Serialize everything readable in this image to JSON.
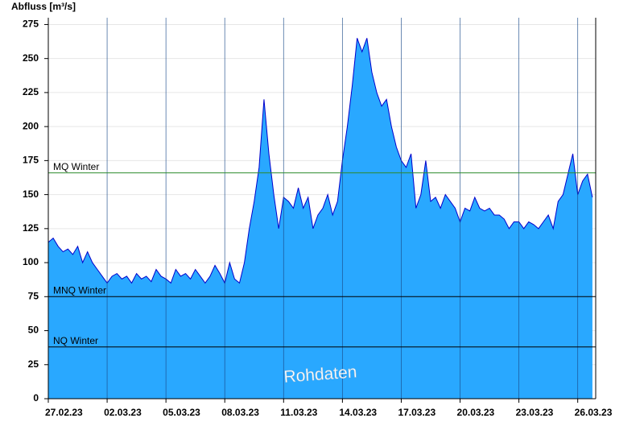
{
  "chart_data": {
    "type": "area",
    "y_label": "Abfluss [m³/s]",
    "annotation": "Rohdaten",
    "x": [
      "2023-02-27T00:00Z",
      "2023-02-27T06:00Z",
      "2023-02-27T12:00Z",
      "2023-02-27T18:00Z",
      "2023-02-28T00:00Z",
      "2023-02-28T06:00Z",
      "2023-02-28T12:00Z",
      "2023-02-28T18:00Z",
      "2023-03-01T00:00Z",
      "2023-03-01T06:00Z",
      "2023-03-01T12:00Z",
      "2023-03-01T18:00Z",
      "2023-03-02T00:00Z",
      "2023-03-02T06:00Z",
      "2023-03-02T12:00Z",
      "2023-03-02T18:00Z",
      "2023-03-03T00:00Z",
      "2023-03-03T06:00Z",
      "2023-03-03T12:00Z",
      "2023-03-03T18:00Z",
      "2023-03-04T00:00Z",
      "2023-03-04T06:00Z",
      "2023-03-04T12:00Z",
      "2023-03-04T18:00Z",
      "2023-03-05T00:00Z",
      "2023-03-05T06:00Z",
      "2023-03-05T12:00Z",
      "2023-03-05T18:00Z",
      "2023-03-06T00:00Z",
      "2023-03-06T06:00Z",
      "2023-03-06T12:00Z",
      "2023-03-06T18:00Z",
      "2023-03-07T00:00Z",
      "2023-03-07T06:00Z",
      "2023-03-07T12:00Z",
      "2023-03-07T18:00Z",
      "2023-03-08T00:00Z",
      "2023-03-08T06:00Z",
      "2023-03-08T12:00Z",
      "2023-03-08T18:00Z",
      "2023-03-09T00:00Z",
      "2023-03-09T06:00Z",
      "2023-03-09T12:00Z",
      "2023-03-09T18:00Z",
      "2023-03-10T00:00Z",
      "2023-03-10T06:00Z",
      "2023-03-10T12:00Z",
      "2023-03-10T18:00Z",
      "2023-03-11T00:00Z",
      "2023-03-11T06:00Z",
      "2023-03-11T12:00Z",
      "2023-03-11T18:00Z",
      "2023-03-12T00:00Z",
      "2023-03-12T06:00Z",
      "2023-03-12T12:00Z",
      "2023-03-12T18:00Z",
      "2023-03-13T00:00Z",
      "2023-03-13T06:00Z",
      "2023-03-13T12:00Z",
      "2023-03-13T18:00Z",
      "2023-03-14T00:00Z",
      "2023-03-14T06:00Z",
      "2023-03-14T12:00Z",
      "2023-03-14T18:00Z",
      "2023-03-15T00:00Z",
      "2023-03-15T06:00Z",
      "2023-03-15T12:00Z",
      "2023-03-15T18:00Z",
      "2023-03-16T00:00Z",
      "2023-03-16T06:00Z",
      "2023-03-16T12:00Z",
      "2023-03-16T18:00Z",
      "2023-03-17T00:00Z",
      "2023-03-17T06:00Z",
      "2023-03-17T12:00Z",
      "2023-03-17T18:00Z",
      "2023-03-18T00:00Z",
      "2023-03-18T06:00Z",
      "2023-03-18T12:00Z",
      "2023-03-18T18:00Z",
      "2023-03-19T00:00Z",
      "2023-03-19T06:00Z",
      "2023-03-19T12:00Z",
      "2023-03-19T18:00Z",
      "2023-03-20T00:00Z",
      "2023-03-20T06:00Z",
      "2023-03-20T12:00Z",
      "2023-03-20T18:00Z",
      "2023-03-21T00:00Z",
      "2023-03-21T06:00Z",
      "2023-03-21T12:00Z",
      "2023-03-21T18:00Z",
      "2023-03-22T00:00Z",
      "2023-03-22T06:00Z",
      "2023-03-22T12:00Z",
      "2023-03-22T18:00Z",
      "2023-03-23T00:00Z",
      "2023-03-23T06:00Z",
      "2023-03-23T12:00Z",
      "2023-03-23T18:00Z",
      "2023-03-24T00:00Z",
      "2023-03-24T06:00Z",
      "2023-03-24T12:00Z",
      "2023-03-24T18:00Z",
      "2023-03-25T00:00Z",
      "2023-03-25T06:00Z",
      "2023-03-25T12:00Z",
      "2023-03-25T18:00Z",
      "2023-03-26T00:00Z",
      "2023-03-26T06:00Z",
      "2023-03-26T12:00Z",
      "2023-03-26T18:00Z"
    ],
    "series": [
      {
        "color": "#29a8ff",
        "line_color": "#0000cc",
        "values": [
          115,
          118,
          112,
          108,
          110,
          106,
          112,
          100,
          108,
          100,
          95,
          90,
          85,
          90,
          92,
          88,
          90,
          85,
          92,
          88,
          90,
          86,
          95,
          90,
          88,
          85,
          95,
          90,
          92,
          88,
          95,
          90,
          85,
          90,
          98,
          92,
          85,
          100,
          88,
          85,
          100,
          125,
          145,
          170,
          220,
          180,
          150,
          125,
          148,
          145,
          140,
          155,
          140,
          148,
          125,
          135,
          140,
          150,
          135,
          145,
          175,
          200,
          230,
          265,
          255,
          265,
          240,
          225,
          215,
          220,
          200,
          185,
          175,
          170,
          180,
          140,
          150,
          175,
          145,
          148,
          140,
          150,
          145,
          140,
          130,
          140,
          138,
          148,
          140,
          138,
          140,
          135,
          135,
          132,
          125,
          130,
          130,
          125,
          130,
          128,
          125,
          130,
          135,
          125,
          145,
          150,
          165,
          180,
          150,
          160,
          165,
          148
        ]
      }
    ],
    "xlim": [
      "2023-02-27T00:00Z",
      "2023-03-26T22:00Z"
    ],
    "xticks": [
      {
        "value": "2023-02-27T00:00Z",
        "label": "27.02.23"
      },
      {
        "value": "2023-03-02T00:00Z",
        "label": "02.03.23"
      },
      {
        "value": "2023-03-05T00:00Z",
        "label": "05.03.23"
      },
      {
        "value": "2023-03-08T00:00Z",
        "label": "08.03.23"
      },
      {
        "value": "2023-03-11T00:00Z",
        "label": "11.03.23"
      },
      {
        "value": "2023-03-14T00:00Z",
        "label": "14.03.23"
      },
      {
        "value": "2023-03-17T00:00Z",
        "label": "17.03.23"
      },
      {
        "value": "2023-03-20T00:00Z",
        "label": "20.03.23"
      },
      {
        "value": "2023-03-23T00:00Z",
        "label": "23.03.23"
      },
      {
        "value": "2023-03-26T00:00Z",
        "label": "26.03.23"
      }
    ],
    "ylim": [
      0,
      280
    ],
    "yticks": [
      0,
      25,
      50,
      75,
      100,
      125,
      150,
      175,
      200,
      225,
      250,
      275
    ],
    "grid": true,
    "reference_lines": [
      {
        "label": "MQ Winter",
        "value": 166,
        "color": "#2e8b2e"
      },
      {
        "label": "MNQ Winter",
        "value": 75,
        "color": "#000000"
      },
      {
        "label": "NQ Winter",
        "value": 38,
        "color": "#000000"
      }
    ]
  }
}
